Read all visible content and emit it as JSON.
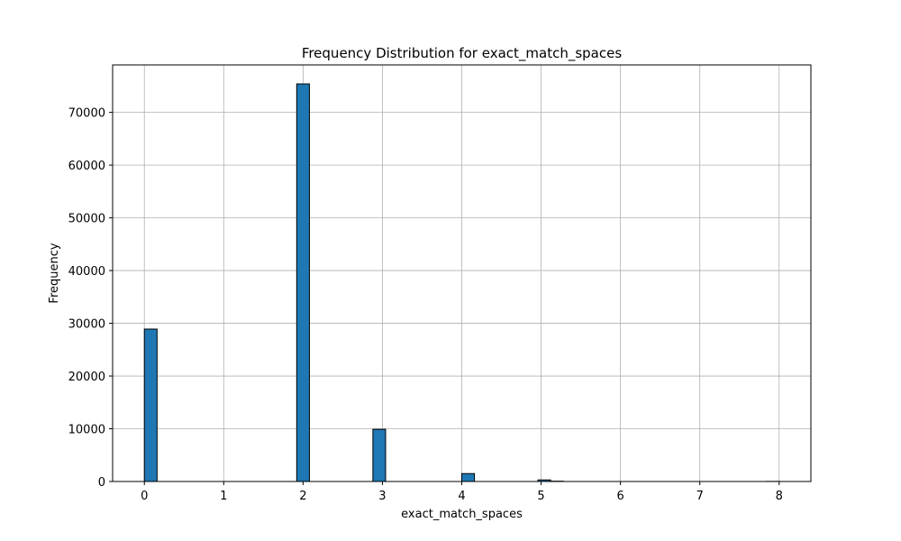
{
  "chart_data": {
    "type": "bar",
    "title": "Frequency Distribution for exact_match_spaces",
    "xlabel": "exact_match_spaces",
    "ylabel": "Frequency",
    "xlim": [
      -0.4,
      8.4
    ],
    "ylim": [
      0,
      79000
    ],
    "xticks": [
      0,
      1,
      2,
      3,
      4,
      5,
      6,
      7,
      8
    ],
    "yticks": [
      0,
      10000,
      20000,
      30000,
      40000,
      50000,
      60000,
      70000
    ],
    "bin_width": 0.16,
    "bins": [
      {
        "start": 0.0,
        "value": 28900
      },
      {
        "start": 0.16,
        "value": 0
      },
      {
        "start": 1.92,
        "value": 75400
      },
      {
        "start": 2.88,
        "value": 9900
      },
      {
        "start": 4.0,
        "value": 1500
      },
      {
        "start": 4.96,
        "value": 300
      },
      {
        "start": 5.12,
        "value": 60
      },
      {
        "start": 7.84,
        "value": 20
      }
    ],
    "bar_color": "#1f77b4",
    "edge_color": "#000000",
    "grid": true
  }
}
